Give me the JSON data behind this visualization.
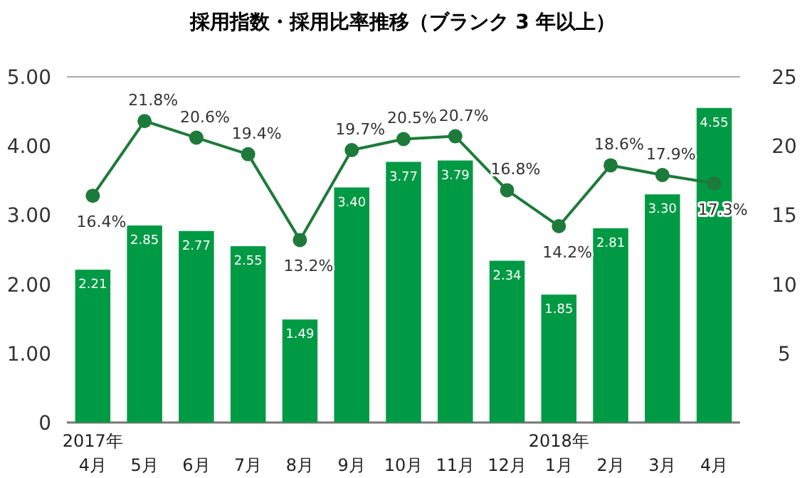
{
  "chart_data": {
    "type": "bar",
    "title": "採用指数・採用比率推移（ブランク 3 年以上）",
    "categories": [
      "2017年\n4月",
      "5月",
      "6月",
      "7月",
      "8月",
      "9月",
      "10月",
      "11月",
      "12月",
      "2018年\n1月",
      "2月",
      "3月",
      "4月"
    ],
    "series": [
      {
        "color": "#009a44",
        "values": [
          2.21,
          2.85,
          2.77,
          2.55,
          1.49,
          3.4,
          3.77,
          3.79,
          2.34,
          1.85,
          2.81,
          3.3,
          4.55
        ],
        "value_labels": [
          "2.21",
          "2.85",
          "2.77",
          "2.55",
          "1.49",
          "3.40",
          "3.77",
          "3.79",
          "2.34",
          "1.85",
          "2.81",
          "3.30",
          "4.55"
        ]
      },
      {
        "type": "line",
        "axis": "y2",
        "color": "#1e7a3a",
        "marker": "circle",
        "values": [
          16.4,
          21.8,
          20.6,
          19.4,
          13.2,
          19.7,
          20.5,
          20.7,
          16.8,
          14.2,
          18.6,
          17.9,
          17.3
        ],
        "value_labels": [
          "16.4%",
          "21.8%",
          "20.6%",
          "19.4%",
          "13.2%",
          "19.7%",
          "20.5%",
          "20.7%",
          "16.8%",
          "14.2%",
          "18.6%",
          "17.9%",
          "17.3%"
        ]
      }
    ],
    "ylim": [
      0,
      5
    ],
    "yticks": [
      {
        "value": 0,
        "label": "0"
      },
      {
        "value": 1,
        "label": "1.00"
      },
      {
        "value": 2,
        "label": "2.00"
      },
      {
        "value": 3,
        "label": "3.00"
      },
      {
        "value": 4,
        "label": "4.00"
      },
      {
        "value": 5,
        "label": "5.00"
      }
    ],
    "y2lim": [
      0,
      25
    ],
    "y2ticks": [
      5,
      10,
      15,
      20,
      25
    ]
  }
}
